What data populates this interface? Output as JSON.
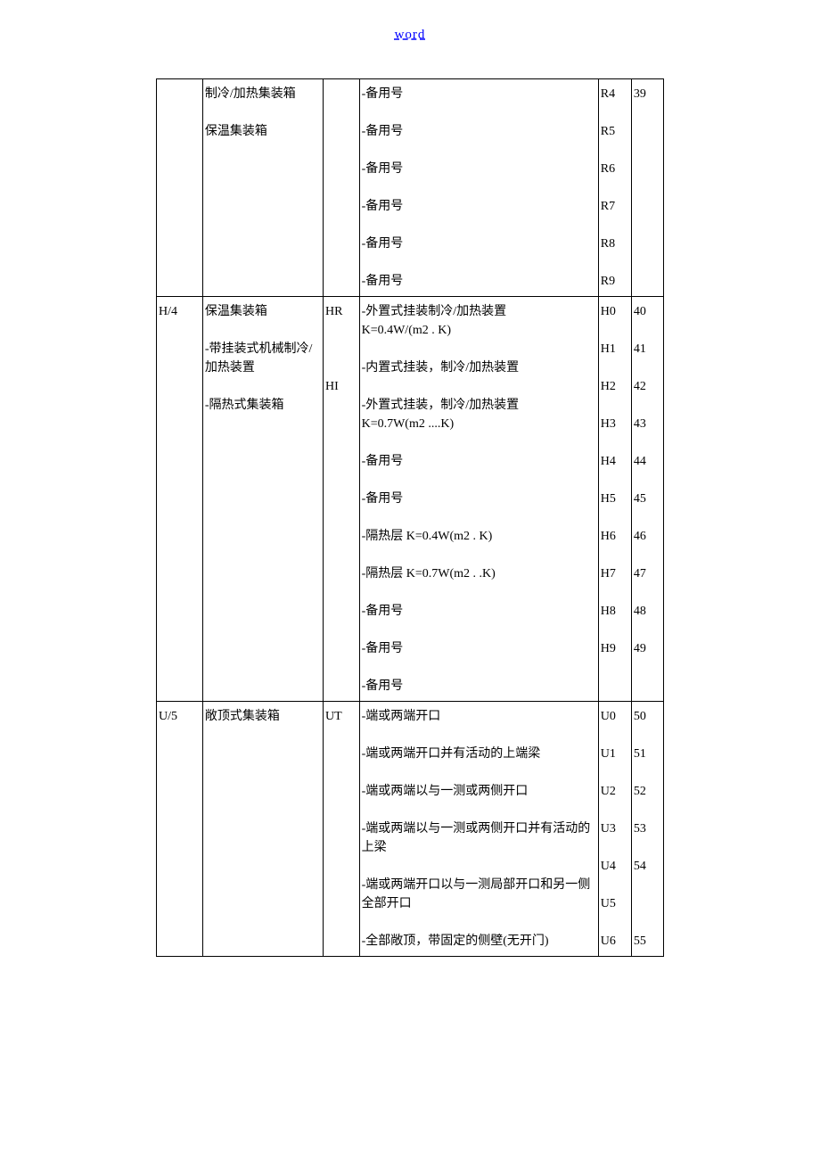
{
  "header": {
    "link": "word"
  },
  "table": {
    "colors": {
      "border": "#000000",
      "text": "#000000",
      "link": "#0000ff",
      "background": "#ffffff"
    },
    "font_size": 14,
    "rows": [
      {
        "col1": "",
        "col2": "制冷/加热集装箱\n\n保温集装箱",
        "col3": "",
        "col4": "-备用号\n\n-备用号\n\n-备用号\n\n-备用号\n\n-备用号\n\n-备用号",
        "col5": "R4\n\nR5\n\nR6\n\nR7\n\nR8\n\nR9",
        "col6": "39"
      },
      {
        "col1": "H/4",
        "col2": "保温集装箱\n\n-带挂装式机械制冷/加热装置\n\n-隔热式集装箱",
        "col3": "HR\n\n\n\nHI",
        "col4": "-外置式挂装制冷/加热装置\nK=0.4W/(m2 . K)\n\n-内置式挂装，制冷/加热装置\n\n-外置式挂装，制冷/加热装置\nK=0.7W(m2 ....K)\n\n-备用号\n\n-备用号\n\n-隔热层 K=0.4W(m2 . K)\n\n-隔热层 K=0.7W(m2 . .K)\n\n-备用号\n\n-备用号\n\n-备用号",
        "col5": "H0\n\nH1\n\nH2\n\nH3\n\nH4\n\nH5\n\nH6\n\nH7\n\nH8\n\nH9",
        "col6": "40\n\n41\n\n42\n\n43\n\n44\n\n45\n\n46\n\n47\n\n48\n\n49"
      },
      {
        "col1": "U/5",
        "col2": "敞顶式集装箱",
        "col3": "UT",
        "col4": "-端或两端开口\n\n-端或两端开口并有活动的上端梁\n\n-端或两端以与一测或两侧开口\n\n-端或两端以与一测或两侧开口并有活动的上梁\n\n-端或两端开口以与一测局部开口和另一侧全部开口\n\n-全部敞顶，带固定的侧壁(无开门)",
        "col5": "U0\n\nU1\n\nU2\n\nU3\n\nU4\n\nU5\n\nU6",
        "col6": "50\n\n51\n\n52\n\n53\n\n54\n\n\n\n55"
      }
    ]
  }
}
